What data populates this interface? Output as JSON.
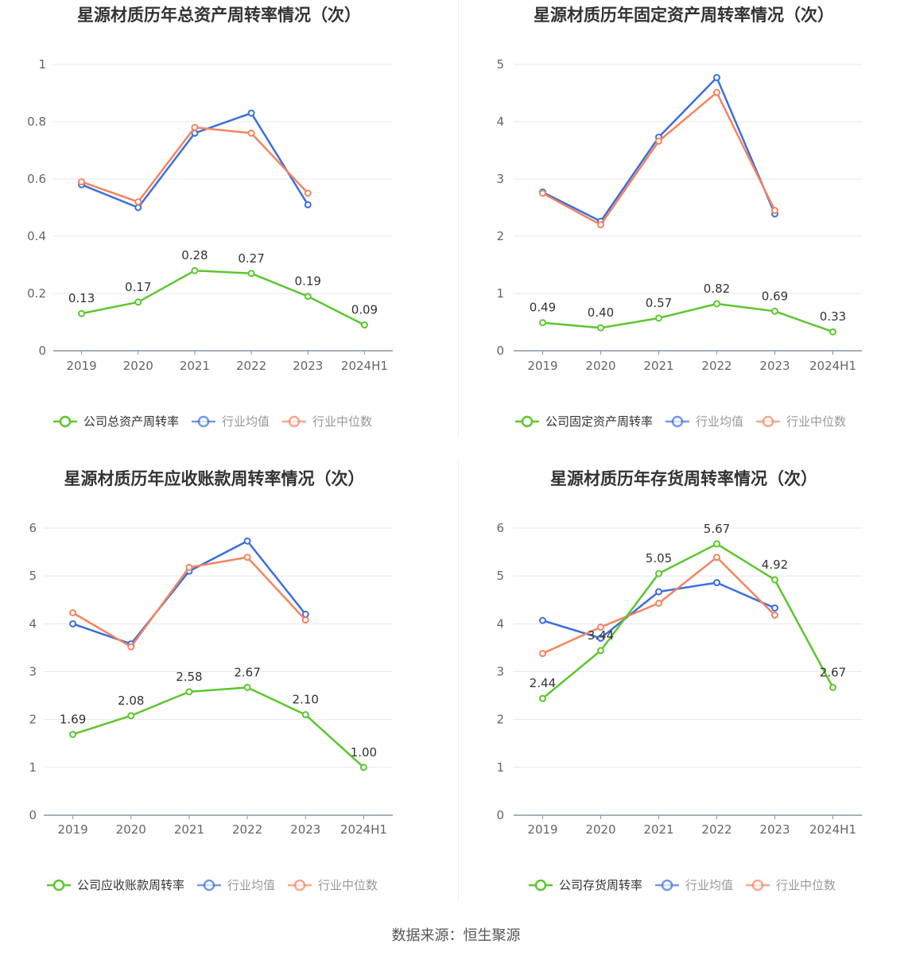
{
  "colors": {
    "company": "#5cc72e",
    "industry_avg": "#3b6fdc",
    "industry_median": "#f4845f",
    "grid": "#e4e8f2",
    "axis": "#8a94a6"
  },
  "source": {
    "label": "数据来源：",
    "name": "恒生聚源"
  },
  "chart_data": [
    {
      "type": "line",
      "title": "星源材质历年总资产周转率情况（次）",
      "categories": [
        "2019",
        "2020",
        "2021",
        "2022",
        "2023",
        "2024H1"
      ],
      "ylim": [
        0,
        1
      ],
      "yticks": [
        "0",
        "0.2",
        "0.4",
        "0.6",
        "0.8",
        "1"
      ],
      "ytick_values": [
        0,
        0.2,
        0.4,
        0.6,
        0.8,
        1
      ],
      "grid": true,
      "legend_position": "bottom",
      "series": [
        {
          "name": "公司总资产周转率",
          "color_key": "company",
          "labeled": true,
          "values": [
            0.13,
            0.17,
            0.28,
            0.27,
            0.19,
            0.09
          ],
          "labels": [
            "0.13",
            "0.17",
            "0.28",
            "0.27",
            "0.19",
            "0.09"
          ]
        },
        {
          "name": "行业均值",
          "color_key": "industry_avg",
          "labeled": false,
          "values": [
            0.58,
            0.5,
            0.76,
            0.83,
            0.51,
            null
          ]
        },
        {
          "name": "行业中位数",
          "color_key": "industry_median",
          "labeled": false,
          "values": [
            0.59,
            0.52,
            0.78,
            0.76,
            0.55,
            null
          ]
        }
      ]
    },
    {
      "type": "line",
      "title": "星源材质历年固定资产周转率情况（次）",
      "categories": [
        "2019",
        "2020",
        "2021",
        "2022",
        "2023",
        "2024H1"
      ],
      "ylim": [
        0,
        5
      ],
      "yticks": [
        "0",
        "1",
        "2",
        "3",
        "4",
        "5"
      ],
      "ytick_values": [
        0,
        1,
        2,
        3,
        4,
        5
      ],
      "grid": true,
      "legend_position": "bottom",
      "series": [
        {
          "name": "公司固定资产周转率",
          "color_key": "company",
          "labeled": true,
          "values": [
            0.49,
            0.4,
            0.57,
            0.82,
            0.69,
            0.33
          ],
          "labels": [
            "0.49",
            "0.40",
            "0.57",
            "0.82",
            "0.69",
            "0.33"
          ]
        },
        {
          "name": "行业均值",
          "color_key": "industry_avg",
          "labeled": false,
          "values": [
            2.77,
            2.26,
            3.73,
            4.77,
            2.39,
            null
          ]
        },
        {
          "name": "行业中位数",
          "color_key": "industry_median",
          "labeled": false,
          "values": [
            2.75,
            2.2,
            3.66,
            4.51,
            2.45,
            null
          ]
        }
      ]
    },
    {
      "type": "line",
      "title": "星源材质历年应收账款周转率情况（次）",
      "categories": [
        "2019",
        "2020",
        "2021",
        "2022",
        "2023",
        "2024H1"
      ],
      "ylim": [
        0,
        6
      ],
      "yticks": [
        "0",
        "1",
        "2",
        "3",
        "4",
        "5",
        "6"
      ],
      "ytick_values": [
        0,
        1,
        2,
        3,
        4,
        5,
        6
      ],
      "grid": true,
      "legend_position": "bottom",
      "series": [
        {
          "name": "公司应收账款周转率",
          "color_key": "company",
          "labeled": true,
          "values": [
            1.69,
            2.08,
            2.58,
            2.67,
            2.1,
            1.0
          ],
          "labels": [
            "1.69",
            "2.08",
            "2.58",
            "2.67",
            "2.10",
            "1.00"
          ]
        },
        {
          "name": "行业均值",
          "color_key": "industry_avg",
          "labeled": false,
          "values": [
            4.0,
            3.58,
            5.1,
            5.73,
            4.2,
            null
          ]
        },
        {
          "name": "行业中位数",
          "color_key": "industry_median",
          "labeled": false,
          "values": [
            4.23,
            3.52,
            5.18,
            5.39,
            4.08,
            null
          ]
        }
      ]
    },
    {
      "type": "line",
      "title": "星源材质历年存货周转率情况（次）",
      "categories": [
        "2019",
        "2020",
        "2021",
        "2022",
        "2023",
        "2024H1"
      ],
      "ylim": [
        0,
        6
      ],
      "yticks": [
        "0",
        "1",
        "2",
        "3",
        "4",
        "5",
        "6"
      ],
      "ytick_values": [
        0,
        1,
        2,
        3,
        4,
        5,
        6
      ],
      "grid": true,
      "legend_position": "bottom",
      "series": [
        {
          "name": "公司存货周转率",
          "color_key": "company",
          "labeled": true,
          "values": [
            2.44,
            3.44,
            5.05,
            5.67,
            4.92,
            2.67
          ],
          "labels": [
            "2.44",
            "3.44",
            "5.05",
            "5.67",
            "4.92",
            "2.67"
          ]
        },
        {
          "name": "行业均值",
          "color_key": "industry_avg",
          "labeled": false,
          "values": [
            4.07,
            3.7,
            4.67,
            4.86,
            4.33,
            null
          ]
        },
        {
          "name": "行业中位数",
          "color_key": "industry_median",
          "labeled": false,
          "values": [
            3.38,
            3.93,
            4.43,
            5.39,
            4.18,
            null
          ]
        }
      ]
    }
  ]
}
